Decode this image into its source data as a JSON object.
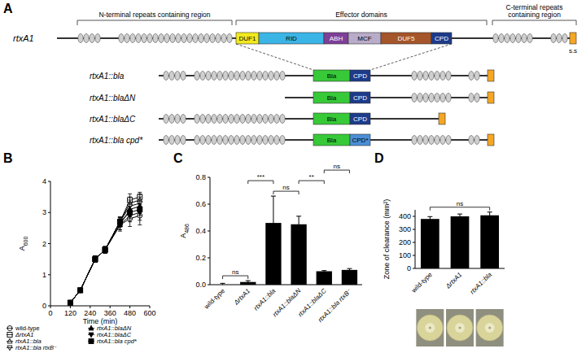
{
  "diagram": {
    "panel": "A",
    "gene": "rtxA1",
    "regions": [
      {
        "lines": [
          "N-terminal repeats containing region"
        ]
      },
      {
        "lines": [
          "Effector domains"
        ]
      },
      {
        "lines": [
          "C-terminal repeats",
          "containing region"
        ]
      }
    ],
    "domains": [
      {
        "label": "DUF1",
        "color": "#f2ea1d"
      },
      {
        "label": "RID",
        "color": "#3bb4e6"
      },
      {
        "label": "ABH",
        "color": "#7d3f98"
      },
      {
        "label": "MCF",
        "color": "#b9acc8"
      },
      {
        "label": "DUF5",
        "color": "#a4552a"
      },
      {
        "label": "CPD",
        "color": "#1d3b8b"
      }
    ],
    "signal": "s.s",
    "signal_color": "#f5a623",
    "repeat_color": "#cfcfcf",
    "insert": {
      "label": "Bla",
      "color": "#37c937"
    },
    "constructs": [
      {
        "label": "rtxA1::bla",
        "cpd_label": "CPD",
        "cpd_color": "#1d3b8b"
      },
      {
        "label": "rtxA1::blaΔN",
        "cpd_label": "CPD",
        "cpd_color": "#1d3b8b"
      },
      {
        "label": "rtxA1::blaΔC",
        "cpd_label": "CPD",
        "cpd_color": "#1d3b8b"
      },
      {
        "label": "rtxA1::bla cpd*",
        "cpd_label": "CPD*",
        "cpd_color": "#4b8fd6"
      }
    ]
  },
  "chart_data": [
    {
      "type": "line",
      "panel": "B",
      "xlabel": "Time (min)",
      "ylabel": "A",
      "ylabel_sub": "600",
      "x": [
        120,
        180,
        270,
        330,
        420,
        480,
        540
      ],
      "xlim": [
        0,
        600
      ],
      "xticks": [
        0,
        120,
        240,
        360,
        480,
        600
      ],
      "ylim": [
        0,
        4
      ],
      "yticks": [
        0,
        1,
        2,
        3,
        4
      ],
      "grid": false,
      "legend": "bottom",
      "series": [
        {
          "name": "wild-type",
          "color": "#000000",
          "marker": "circle-open",
          "values": [
            0.1,
            0.5,
            1.5,
            1.8,
            2.6,
            2.8,
            2.9
          ],
          "errors": [
            0.02,
            0.03,
            0.1,
            0.1,
            0.2,
            0.25,
            0.3
          ]
        },
        {
          "name": "ΔrtxA1",
          "color": "#000000",
          "marker": "square-open",
          "values": [
            0.1,
            0.5,
            1.5,
            1.8,
            2.7,
            3.4,
            3.5
          ],
          "errors": [
            0.02,
            0.03,
            0.1,
            0.1,
            0.15,
            0.2,
            0.15
          ]
        },
        {
          "name": "rtxA1::bla",
          "color": "#000000",
          "marker": "triangle-open",
          "values": [
            0.1,
            0.5,
            1.5,
            1.8,
            2.7,
            3.3,
            3.4
          ],
          "errors": [
            0.02,
            0.03,
            0.1,
            0.1,
            0.15,
            0.2,
            0.2
          ]
        },
        {
          "name": "rtxA1::bla rtxB⁻",
          "color": "#000000",
          "marker": "triangle-down-open",
          "values": [
            0.1,
            0.5,
            1.5,
            1.8,
            2.7,
            3.2,
            3.3
          ],
          "errors": [
            0.02,
            0.03,
            0.1,
            0.1,
            0.15,
            0.2,
            0.2
          ]
        },
        {
          "name": "rtxA1::blaΔN",
          "color": "#000000",
          "marker": "triangle",
          "values": [
            0.1,
            0.5,
            1.5,
            1.8,
            2.6,
            3.1,
            3.2
          ],
          "errors": [
            0.02,
            0.03,
            0.1,
            0.1,
            0.15,
            0.2,
            0.2
          ]
        },
        {
          "name": "rtxA1::blaΔC",
          "color": "#000000",
          "marker": "triangle-down",
          "values": [
            0.1,
            0.5,
            1.5,
            1.8,
            2.6,
            2.9,
            3.0
          ],
          "errors": [
            0.02,
            0.03,
            0.1,
            0.1,
            0.15,
            0.2,
            0.25
          ]
        },
        {
          "name": "rtxA1::bla cpd*",
          "color": "#000000",
          "marker": "square",
          "values": [
            0.1,
            0.5,
            1.5,
            1.8,
            2.7,
            3.0,
            3.1
          ],
          "errors": [
            0.02,
            0.03,
            0.1,
            0.1,
            0.15,
            0.2,
            0.2
          ]
        }
      ]
    },
    {
      "type": "bar",
      "panel": "C",
      "ylabel": "A",
      "ylabel_sub": "486",
      "categories": [
        "wild-type",
        "ΔrtxA1",
        "rtxA1::bla",
        "rtxA1::blaΔN",
        "rtxA1::blaΔC",
        "rtxA1::bla rtxB⁻"
      ],
      "values": [
        0,
        0.02,
        0.46,
        0.45,
        0.1,
        0.11
      ],
      "errors": [
        0.01,
        0.01,
        0.2,
        0.06,
        0.005,
        0.01
      ],
      "color": "#000000",
      "ylim": [
        0,
        0.8
      ],
      "yticks": [
        {
          "value": 0,
          "label": "0.0"
        },
        0.2,
        0.4,
        0.6,
        0.8
      ],
      "grid": false,
      "annotations": [
        {
          "text": "ns",
          "from": 0,
          "to": 1
        },
        {
          "text": "ns",
          "from": 2,
          "to": 3
        },
        {
          "text": "***",
          "from": 1,
          "to": 2
        },
        {
          "text": "**",
          "from": 3,
          "to": 4
        },
        {
          "text": "ns",
          "from": 4,
          "to": 5
        }
      ]
    },
    {
      "type": "bar",
      "panel": "D",
      "ylabel": "Zone of clearance (mm²)",
      "categories": [
        "wild-type",
        "ΔrtxA1",
        "rtxA1::bla"
      ],
      "values": [
        380,
        400,
        408
      ],
      "errors": [
        18,
        18,
        25
      ],
      "color": "#000000",
      "ylim": [
        0,
        450
      ],
      "yticks": [
        0,
        100,
        200,
        300,
        400
      ],
      "grid": false,
      "annotations": [
        {
          "text": "ns",
          "from": 0,
          "to": 2
        }
      ]
    }
  ]
}
